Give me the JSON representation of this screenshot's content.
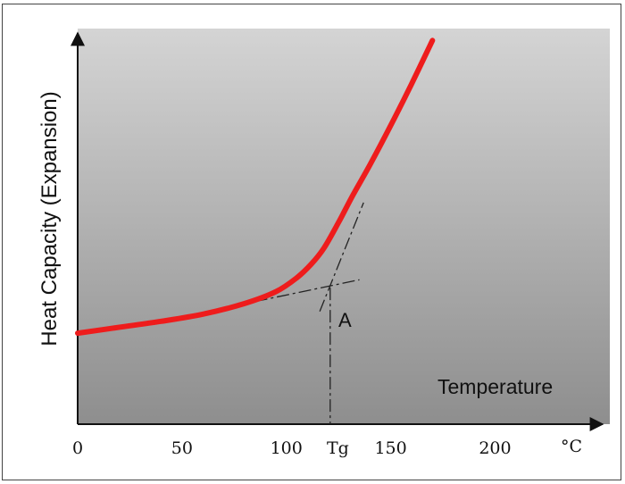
{
  "chart_data": {
    "type": "line",
    "title": "",
    "xlabel": "Temperature",
    "ylabel": "Heat Capacity (Expansion)",
    "x_unit": "°C",
    "xlim": [
      0,
      255
    ],
    "ylim": [
      0,
      1
    ],
    "y_ticks_shown": false,
    "grid": false,
    "background": "gradient-gray",
    "x_ticks": [
      {
        "value": 0,
        "label": "0"
      },
      {
        "value": 50,
        "label": "50"
      },
      {
        "value": 100,
        "label": "100"
      },
      {
        "value": 150,
        "label": "150"
      },
      {
        "value": 200,
        "label": "200"
      }
    ],
    "series": [
      {
        "name": "",
        "color": "#ee1c1c",
        "x": [
          0,
          20,
          40,
          60,
          80,
          95,
          105,
          112,
          118,
          125,
          132,
          140,
          150,
          160,
          170
        ],
        "y": [
          0.23,
          0.245,
          0.26,
          0.278,
          0.305,
          0.335,
          0.37,
          0.405,
          0.445,
          0.51,
          0.58,
          0.655,
          0.755,
          0.86,
          0.97
        ]
      }
    ],
    "tangent_lines": [
      {
        "style": "dash-dot",
        "x": [
          85,
          135
        ],
        "y": [
          0.31,
          0.365
        ]
      },
      {
        "style": "dash-dot",
        "x": [
          116,
          137
        ],
        "y": [
          0.285,
          0.56
        ]
      }
    ],
    "drop_line": {
      "style": "dash-dot",
      "x": 121,
      "y_top": 0.345,
      "y_bottom": 0
    },
    "annotations": [
      {
        "label": "A",
        "x": 122,
        "y": 0.346
      },
      {
        "label": "Tg",
        "x": 121,
        "on_axis": "x"
      }
    ]
  }
}
